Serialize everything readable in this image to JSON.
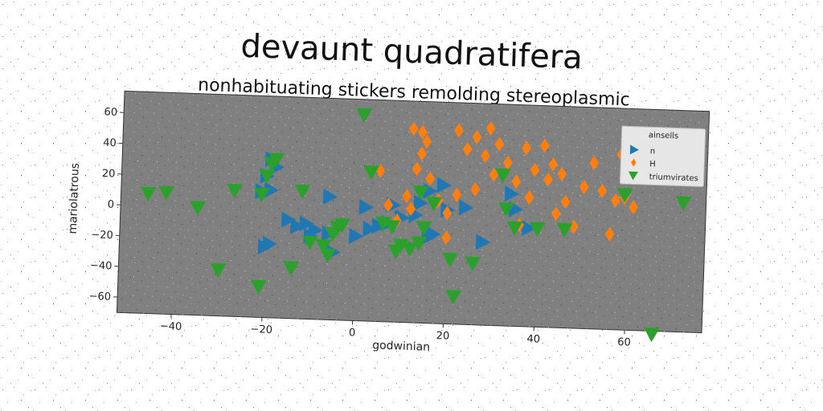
{
  "chart_data": {
    "type": "scatter",
    "title": "devaunt quadratifera",
    "subtitle": "nonhabituating stickers remolding stereoplasmic",
    "xlabel": "godwinian",
    "ylabel": "mariolatrous",
    "xlim": [
      -52,
      77
    ],
    "ylim": [
      -70,
      74
    ],
    "xticks": [
      -40,
      -20,
      0,
      20,
      40,
      60
    ],
    "yticks": [
      -60,
      -40,
      -20,
      0,
      20,
      40,
      60
    ],
    "legend_title": "ainsells",
    "legend_position": "top-right",
    "background": "#808080",
    "series": [
      {
        "name": "n",
        "marker": "triangle-right",
        "color": "#1f77b4",
        "points": [
          [
            -19,
            33
          ],
          [
            -18,
            28
          ],
          [
            -20,
            22
          ],
          [
            -21,
            12
          ],
          [
            -19,
            13
          ],
          [
            -6,
            10
          ],
          [
            -15,
            -6
          ],
          [
            -11,
            -8
          ],
          [
            -13,
            -10
          ],
          [
            -9,
            -12
          ],
          [
            -6,
            -14
          ],
          [
            -10,
            -16
          ],
          [
            -19,
            -22
          ],
          [
            -5,
            -26
          ],
          [
            0,
            -15
          ],
          [
            3,
            -10
          ],
          [
            5,
            -8
          ],
          [
            7,
            -6
          ],
          [
            2,
            4
          ],
          [
            8,
            6
          ],
          [
            10,
            -2
          ],
          [
            13,
            0
          ],
          [
            14,
            8
          ],
          [
            16,
            16
          ],
          [
            19,
            20
          ],
          [
            20,
            4
          ],
          [
            24,
            6
          ],
          [
            17,
            -12
          ],
          [
            16,
            -14
          ],
          [
            28,
            -16
          ],
          [
            34,
            16
          ],
          [
            35,
            6
          ],
          [
            38,
            -6
          ],
          [
            -20,
            -24
          ]
        ]
      },
      {
        "name": "H",
        "marker": "diamond",
        "color": "#ff7f0e",
        "points": [
          [
            12,
            56
          ],
          [
            14,
            54
          ],
          [
            15,
            48
          ],
          [
            14,
            40
          ],
          [
            13,
            30
          ],
          [
            11,
            12
          ],
          [
            12,
            4
          ],
          [
            9,
            -4
          ],
          [
            7,
            6
          ],
          [
            5,
            28
          ],
          [
            16,
            24
          ],
          [
            18,
            10
          ],
          [
            20,
            2
          ],
          [
            22,
            56
          ],
          [
            24,
            44
          ],
          [
            26,
            52
          ],
          [
            28,
            40
          ],
          [
            29,
            58
          ],
          [
            31,
            48
          ],
          [
            33,
            36
          ],
          [
            35,
            24
          ],
          [
            37,
            46
          ],
          [
            39,
            32
          ],
          [
            41,
            48
          ],
          [
            43,
            36
          ],
          [
            45,
            30
          ],
          [
            46,
            12
          ],
          [
            48,
            -4
          ],
          [
            50,
            22
          ],
          [
            52,
            38
          ],
          [
            54,
            20
          ],
          [
            57,
            14
          ],
          [
            59,
            16
          ],
          [
            61,
            10
          ],
          [
            56,
            -8
          ],
          [
            58,
            44
          ],
          [
            42,
            26
          ],
          [
            38,
            14
          ],
          [
            30,
            28
          ],
          [
            26,
            18
          ],
          [
            22,
            14
          ],
          [
            20,
            -14
          ],
          [
            44,
            4
          ],
          [
            36,
            -4
          ]
        ]
      },
      {
        "name": "triumvirates",
        "marker": "triangle-down",
        "color": "#2ca02c",
        "points": [
          [
            -46,
            8
          ],
          [
            -42,
            9
          ],
          [
            -35,
            0
          ],
          [
            -27,
            12
          ],
          [
            -21,
            10
          ],
          [
            -20,
            22
          ],
          [
            -19,
            30
          ],
          [
            -18,
            33
          ],
          [
            -12,
            13
          ],
          [
            -30,
            -40
          ],
          [
            -21,
            -50
          ],
          [
            -14,
            -37
          ],
          [
            -10,
            -20
          ],
          [
            -7,
            -22
          ],
          [
            -6,
            -28
          ],
          [
            -5,
            -14
          ],
          [
            -4,
            -10
          ],
          [
            -3,
            -8
          ],
          [
            1,
            64
          ],
          [
            3,
            27
          ],
          [
            6,
            -6
          ],
          [
            8,
            -8
          ],
          [
            9,
            -24
          ],
          [
            10,
            -20
          ],
          [
            12,
            -22
          ],
          [
            14,
            -18
          ],
          [
            15,
            -8
          ],
          [
            14,
            15
          ],
          [
            17,
            8
          ],
          [
            21,
            -28
          ],
          [
            22,
            -52
          ],
          [
            26,
            -30
          ],
          [
            32,
            28
          ],
          [
            33,
            6
          ],
          [
            35,
            -6
          ],
          [
            40,
            -6
          ],
          [
            46,
            -6
          ],
          [
            66,
            -72
          ],
          [
            72,
            14
          ],
          [
            59,
            18
          ]
        ]
      }
    ]
  }
}
